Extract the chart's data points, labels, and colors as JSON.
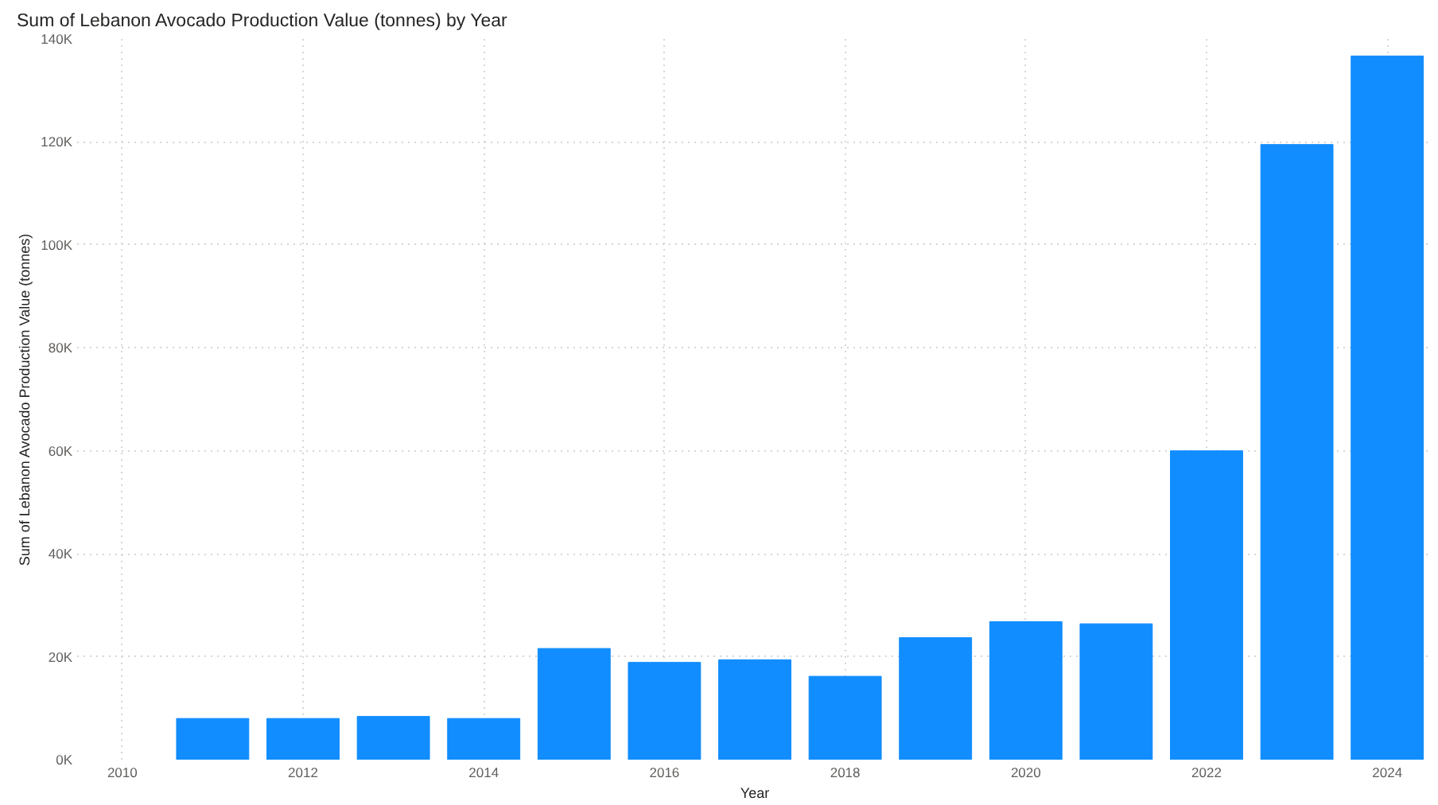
{
  "chart_data": {
    "type": "bar",
    "title": "Sum of Lebanon Avocado Production Value (tonnes) by Year",
    "xlabel": "Year",
    "ylabel": "Sum of Lebanon Avocado Production Value (tonnes)",
    "x": [
      2011,
      2012,
      2013,
      2014,
      2015,
      2016,
      2017,
      2018,
      2019,
      2020,
      2021,
      2022,
      2023,
      2024
    ],
    "values": [
      8000,
      8000,
      8400,
      8000,
      21600,
      18900,
      19400,
      16200,
      23700,
      26800,
      26400,
      60000,
      119500,
      136700
    ],
    "color": "#118dff",
    "xlim": [
      2009.5,
      2024.5
    ],
    "xticks": [
      2010,
      2012,
      2014,
      2016,
      2018,
      2020,
      2022,
      2024
    ],
    "ylim": [
      0,
      140000
    ],
    "yticks": [
      {
        "value": 0,
        "label": "0K"
      },
      {
        "value": 20000,
        "label": "20K"
      },
      {
        "value": 40000,
        "label": "40K"
      },
      {
        "value": 60000,
        "label": "60K"
      },
      {
        "value": 80000,
        "label": "80K"
      },
      {
        "value": 100000,
        "label": "100K"
      },
      {
        "value": 120000,
        "label": "120K"
      },
      {
        "value": 140000,
        "label": "140K"
      }
    ],
    "grid": true
  }
}
